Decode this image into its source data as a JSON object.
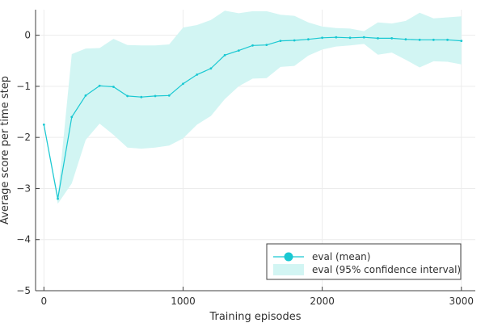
{
  "chart_data": {
    "type": "line",
    "title": "",
    "xlabel": "Training episodes",
    "ylabel": "Average score per time step",
    "xlim": [
      -60,
      3100
    ],
    "ylim": [
      -5,
      0.5
    ],
    "xticks": [
      0,
      1000,
      2000,
      3000
    ],
    "xtick_labels": [
      "0",
      "1000",
      "2000",
      "3000"
    ],
    "yticks": [
      0,
      -1,
      -2,
      -3,
      -4,
      -5
    ],
    "ytick_labels": [
      "0",
      "−1",
      "−2",
      "−3",
      "−4",
      "−5"
    ],
    "grid": true,
    "legend_position": "bottom-right",
    "colors": {
      "line": "#19c8d2",
      "band": "#d2f5f3",
      "axis": "#404040",
      "grid": "#ececec"
    },
    "x": [
      0,
      100,
      200,
      300,
      400,
      500,
      600,
      700,
      800,
      900,
      1000,
      1100,
      1200,
      1300,
      1400,
      1500,
      1600,
      1700,
      1800,
      1900,
      2000,
      2100,
      2200,
      2300,
      2400,
      2500,
      2600,
      2700,
      2800,
      2900,
      3000
    ],
    "series": [
      {
        "name": "eval (mean)",
        "kind": "line-markers",
        "values": [
          -1.75,
          -3.2,
          -1.6,
          -1.18,
          -0.99,
          -1.01,
          -1.19,
          -1.21,
          -1.19,
          -1.18,
          -0.95,
          -0.77,
          -0.65,
          -0.39,
          -0.3,
          -0.2,
          -0.19,
          -0.11,
          -0.1,
          -0.08,
          -0.05,
          -0.04,
          -0.05,
          -0.04,
          -0.06,
          -0.06,
          -0.08,
          -0.09,
          -0.09,
          -0.09,
          -0.11
        ]
      },
      {
        "name": "eval (95% confidence interval)",
        "kind": "band",
        "lower": [
          -1.8,
          -3.3,
          -2.9,
          -2.05,
          -1.73,
          -1.95,
          -2.2,
          -2.22,
          -2.2,
          -2.16,
          -2.02,
          -1.75,
          -1.58,
          -1.25,
          -1.0,
          -0.85,
          -0.84,
          -0.62,
          -0.6,
          -0.4,
          -0.28,
          -0.22,
          -0.2,
          -0.17,
          -0.38,
          -0.34,
          -0.48,
          -0.63,
          -0.51,
          -0.52,
          -0.57
        ],
        "upper": [
          -1.7,
          -3.15,
          -0.37,
          -0.26,
          -0.25,
          -0.07,
          -0.19,
          -0.2,
          -0.2,
          -0.18,
          0.15,
          0.2,
          0.3,
          0.48,
          0.43,
          0.47,
          0.47,
          0.4,
          0.38,
          0.25,
          0.17,
          0.14,
          0.13,
          0.08,
          0.25,
          0.23,
          0.28,
          0.44,
          0.33,
          0.35,
          0.37
        ]
      }
    ]
  }
}
